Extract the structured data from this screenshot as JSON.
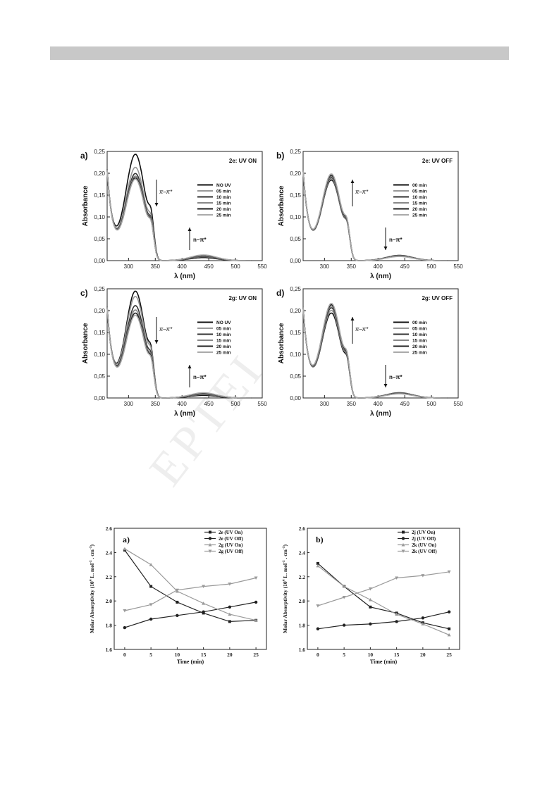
{
  "watermark": "EPTEI",
  "spectra": [
    {
      "id": "a",
      "panel_label": "a)",
      "title": "2e: UV ON",
      "xlabel": "λ (nm)",
      "ylabel": "Absorbance",
      "xlim": [
        260,
        550
      ],
      "ylim": [
        0,
        0.25
      ],
      "xticks": [
        300,
        350,
        400,
        450,
        500,
        550
      ],
      "yticks": [
        0,
        0.05,
        0.1,
        0.15,
        0.2,
        0.25
      ],
      "ytick_labels": [
        "0,00",
        "0,05",
        "0,10",
        "0,15",
        "0,20",
        "0,25"
      ],
      "arrow_pi": {
        "label": "π–π*",
        "direction": "down"
      },
      "arrow_n": {
        "label": "n–π*",
        "direction": "up"
      },
      "legend": [
        "NO UV",
        "05 min",
        "10 min",
        "15 min",
        "20 min",
        "25 min"
      ],
      "series_colors": [
        "#111111",
        "#999999",
        "#333333",
        "#888888",
        "#222222",
        "#aaaaaa"
      ],
      "peak_values": [
        0.242,
        0.212,
        0.198,
        0.192,
        0.188,
        0.185
      ],
      "n_band_values": [
        0.007,
        0.009,
        0.01,
        0.011,
        0.012,
        0.013
      ]
    },
    {
      "id": "b",
      "panel_label": "b)",
      "title": "2e: UV OFF",
      "xlabel": "λ (nm)",
      "ylabel": "Absorbance",
      "xlim": [
        260,
        550
      ],
      "ylim": [
        0,
        0.25
      ],
      "xticks": [
        300,
        350,
        400,
        450,
        500,
        550
      ],
      "yticks": [
        0,
        0.05,
        0.1,
        0.15,
        0.2,
        0.25
      ],
      "ytick_labels": [
        "0,00",
        "0,05",
        "0,10",
        "0,15",
        "0,20",
        "0,25"
      ],
      "arrow_pi": {
        "label": "π–π*",
        "direction": "up"
      },
      "arrow_n": {
        "label": "n–π*",
        "direction": "down"
      },
      "legend": [
        "00 min",
        "05 min",
        "10 min",
        "15 min",
        "20 min",
        "25 min"
      ],
      "series_colors": [
        "#111111",
        "#999999",
        "#333333",
        "#888888",
        "#222222",
        "#aaaaaa"
      ],
      "peak_values": [
        0.183,
        0.186,
        0.189,
        0.191,
        0.194,
        0.197
      ],
      "n_band_values": [
        0.012,
        0.0115,
        0.011,
        0.0105,
        0.01,
        0.0095
      ]
    },
    {
      "id": "c",
      "panel_label": "c)",
      "title": "2g: UV ON",
      "xlabel": "λ (nm)",
      "ylabel": "Absorbance",
      "xlim": [
        260,
        550
      ],
      "ylim": [
        0,
        0.25
      ],
      "xticks": [
        300,
        350,
        400,
        450,
        500,
        550
      ],
      "yticks": [
        0,
        0.05,
        0.1,
        0.15,
        0.2,
        0.25
      ],
      "ytick_labels": [
        "0,00",
        "0,05",
        "0,10",
        "0,15",
        "0,20",
        "0,25"
      ],
      "arrow_pi": {
        "label": "π–π*",
        "direction": "down"
      },
      "arrow_n": {
        "label": "n–π*",
        "direction": "up"
      },
      "legend": [
        "NO UV",
        "05 min",
        "10 min",
        "15 min",
        "20 min",
        "25 min"
      ],
      "series_colors": [
        "#111111",
        "#999999",
        "#333333",
        "#888888",
        "#222222",
        "#aaaaaa"
      ],
      "peak_values": [
        0.243,
        0.231,
        0.21,
        0.2,
        0.193,
        0.188
      ],
      "n_band_values": [
        0.006,
        0.008,
        0.009,
        0.01,
        0.011,
        0.012
      ]
    },
    {
      "id": "d",
      "panel_label": "d)",
      "title": "2g: UV OFF",
      "xlabel": "λ (nm)",
      "ylabel": "Absorbance",
      "xlim": [
        260,
        550
      ],
      "ylim": [
        0,
        0.25
      ],
      "xticks": [
        300,
        350,
        400,
        450,
        500,
        550
      ],
      "yticks": [
        0,
        0.05,
        0.1,
        0.15,
        0.2,
        0.25
      ],
      "ytick_labels": [
        "0,00",
        "0,05",
        "0,10",
        "0,15",
        "0,20",
        "0,25"
      ],
      "arrow_pi": {
        "label": "π–π*",
        "direction": "up"
      },
      "arrow_n": {
        "label": "n–π*",
        "direction": "down"
      },
      "legend": [
        "00 min",
        "05 min",
        "10 min",
        "15 min",
        "20 min",
        "25 min"
      ],
      "series_colors": [
        "#111111",
        "#999999",
        "#333333",
        "#888888",
        "#222222",
        "#aaaaaa"
      ],
      "peak_values": [
        0.193,
        0.199,
        0.205,
        0.209,
        0.212,
        0.215
      ],
      "n_band_values": [
        0.012,
        0.0115,
        0.011,
        0.0105,
        0.01,
        0.0095
      ]
    }
  ],
  "chart_data": [
    {
      "type": "line",
      "panel_label": "a)",
      "xlabel": "Time (min)",
      "ylabel": "Molar Absorptivity (10^4 L. mol^-1 . cm^-1)",
      "xlim": [
        -2,
        27
      ],
      "ylim": [
        1.6,
        2.6
      ],
      "xticks": [
        0,
        5,
        10,
        15,
        20,
        25
      ],
      "yticks": [
        1.6,
        1.8,
        2.0,
        2.2,
        2.4,
        2.6
      ],
      "x": [
        0,
        5,
        10,
        15,
        20,
        25
      ],
      "legend_placement": "top-right",
      "series": [
        {
          "name": "2e (UV On)",
          "values": [
            2.42,
            2.12,
            1.99,
            1.9,
            1.83,
            1.84
          ],
          "marker": "square",
          "color": "#222222"
        },
        {
          "name": "2e (UV Off)",
          "values": [
            1.78,
            1.85,
            1.88,
            1.91,
            1.95,
            1.99
          ],
          "marker": "circle",
          "color": "#222222"
        },
        {
          "name": "2g (UV On)",
          "values": [
            2.43,
            2.3,
            2.08,
            1.98,
            1.89,
            1.84
          ],
          "marker": "triangle-up",
          "color": "#9a9a9a"
        },
        {
          "name": "2g (UV Off)",
          "values": [
            1.92,
            1.97,
            2.09,
            2.12,
            2.14,
            2.19
          ],
          "marker": "triangle-down",
          "color": "#9a9a9a"
        }
      ]
    },
    {
      "type": "line",
      "panel_label": "b)",
      "xlabel": "Time (min)",
      "ylabel": "Molar Absorptivity (10^4 L. mol^-1 . cm^-1)",
      "xlim": [
        -2,
        27
      ],
      "ylim": [
        1.6,
        2.6
      ],
      "xticks": [
        0,
        5,
        10,
        15,
        20,
        25
      ],
      "yticks": [
        1.6,
        1.8,
        2.0,
        2.2,
        2.4,
        2.6
      ],
      "x": [
        0,
        5,
        10,
        15,
        20,
        25
      ],
      "legend_placement": "top-right",
      "series": [
        {
          "name": "2j (UV On)",
          "values": [
            2.31,
            2.12,
            1.95,
            1.9,
            1.82,
            1.77
          ],
          "marker": "square",
          "color": "#222222"
        },
        {
          "name": "2j (UV Off)",
          "values": [
            1.77,
            1.8,
            1.81,
            1.83,
            1.86,
            1.91
          ],
          "marker": "circle",
          "color": "#222222"
        },
        {
          "name": "2k (UV On)",
          "values": [
            2.29,
            2.12,
            2.01,
            1.89,
            1.81,
            1.72
          ],
          "marker": "triangle-up",
          "color": "#9a9a9a"
        },
        {
          "name": "2k (UV Off)",
          "values": [
            1.96,
            2.03,
            2.1,
            2.19,
            2.21,
            2.24
          ],
          "marker": "triangle-down",
          "color": "#9a9a9a"
        }
      ]
    }
  ]
}
